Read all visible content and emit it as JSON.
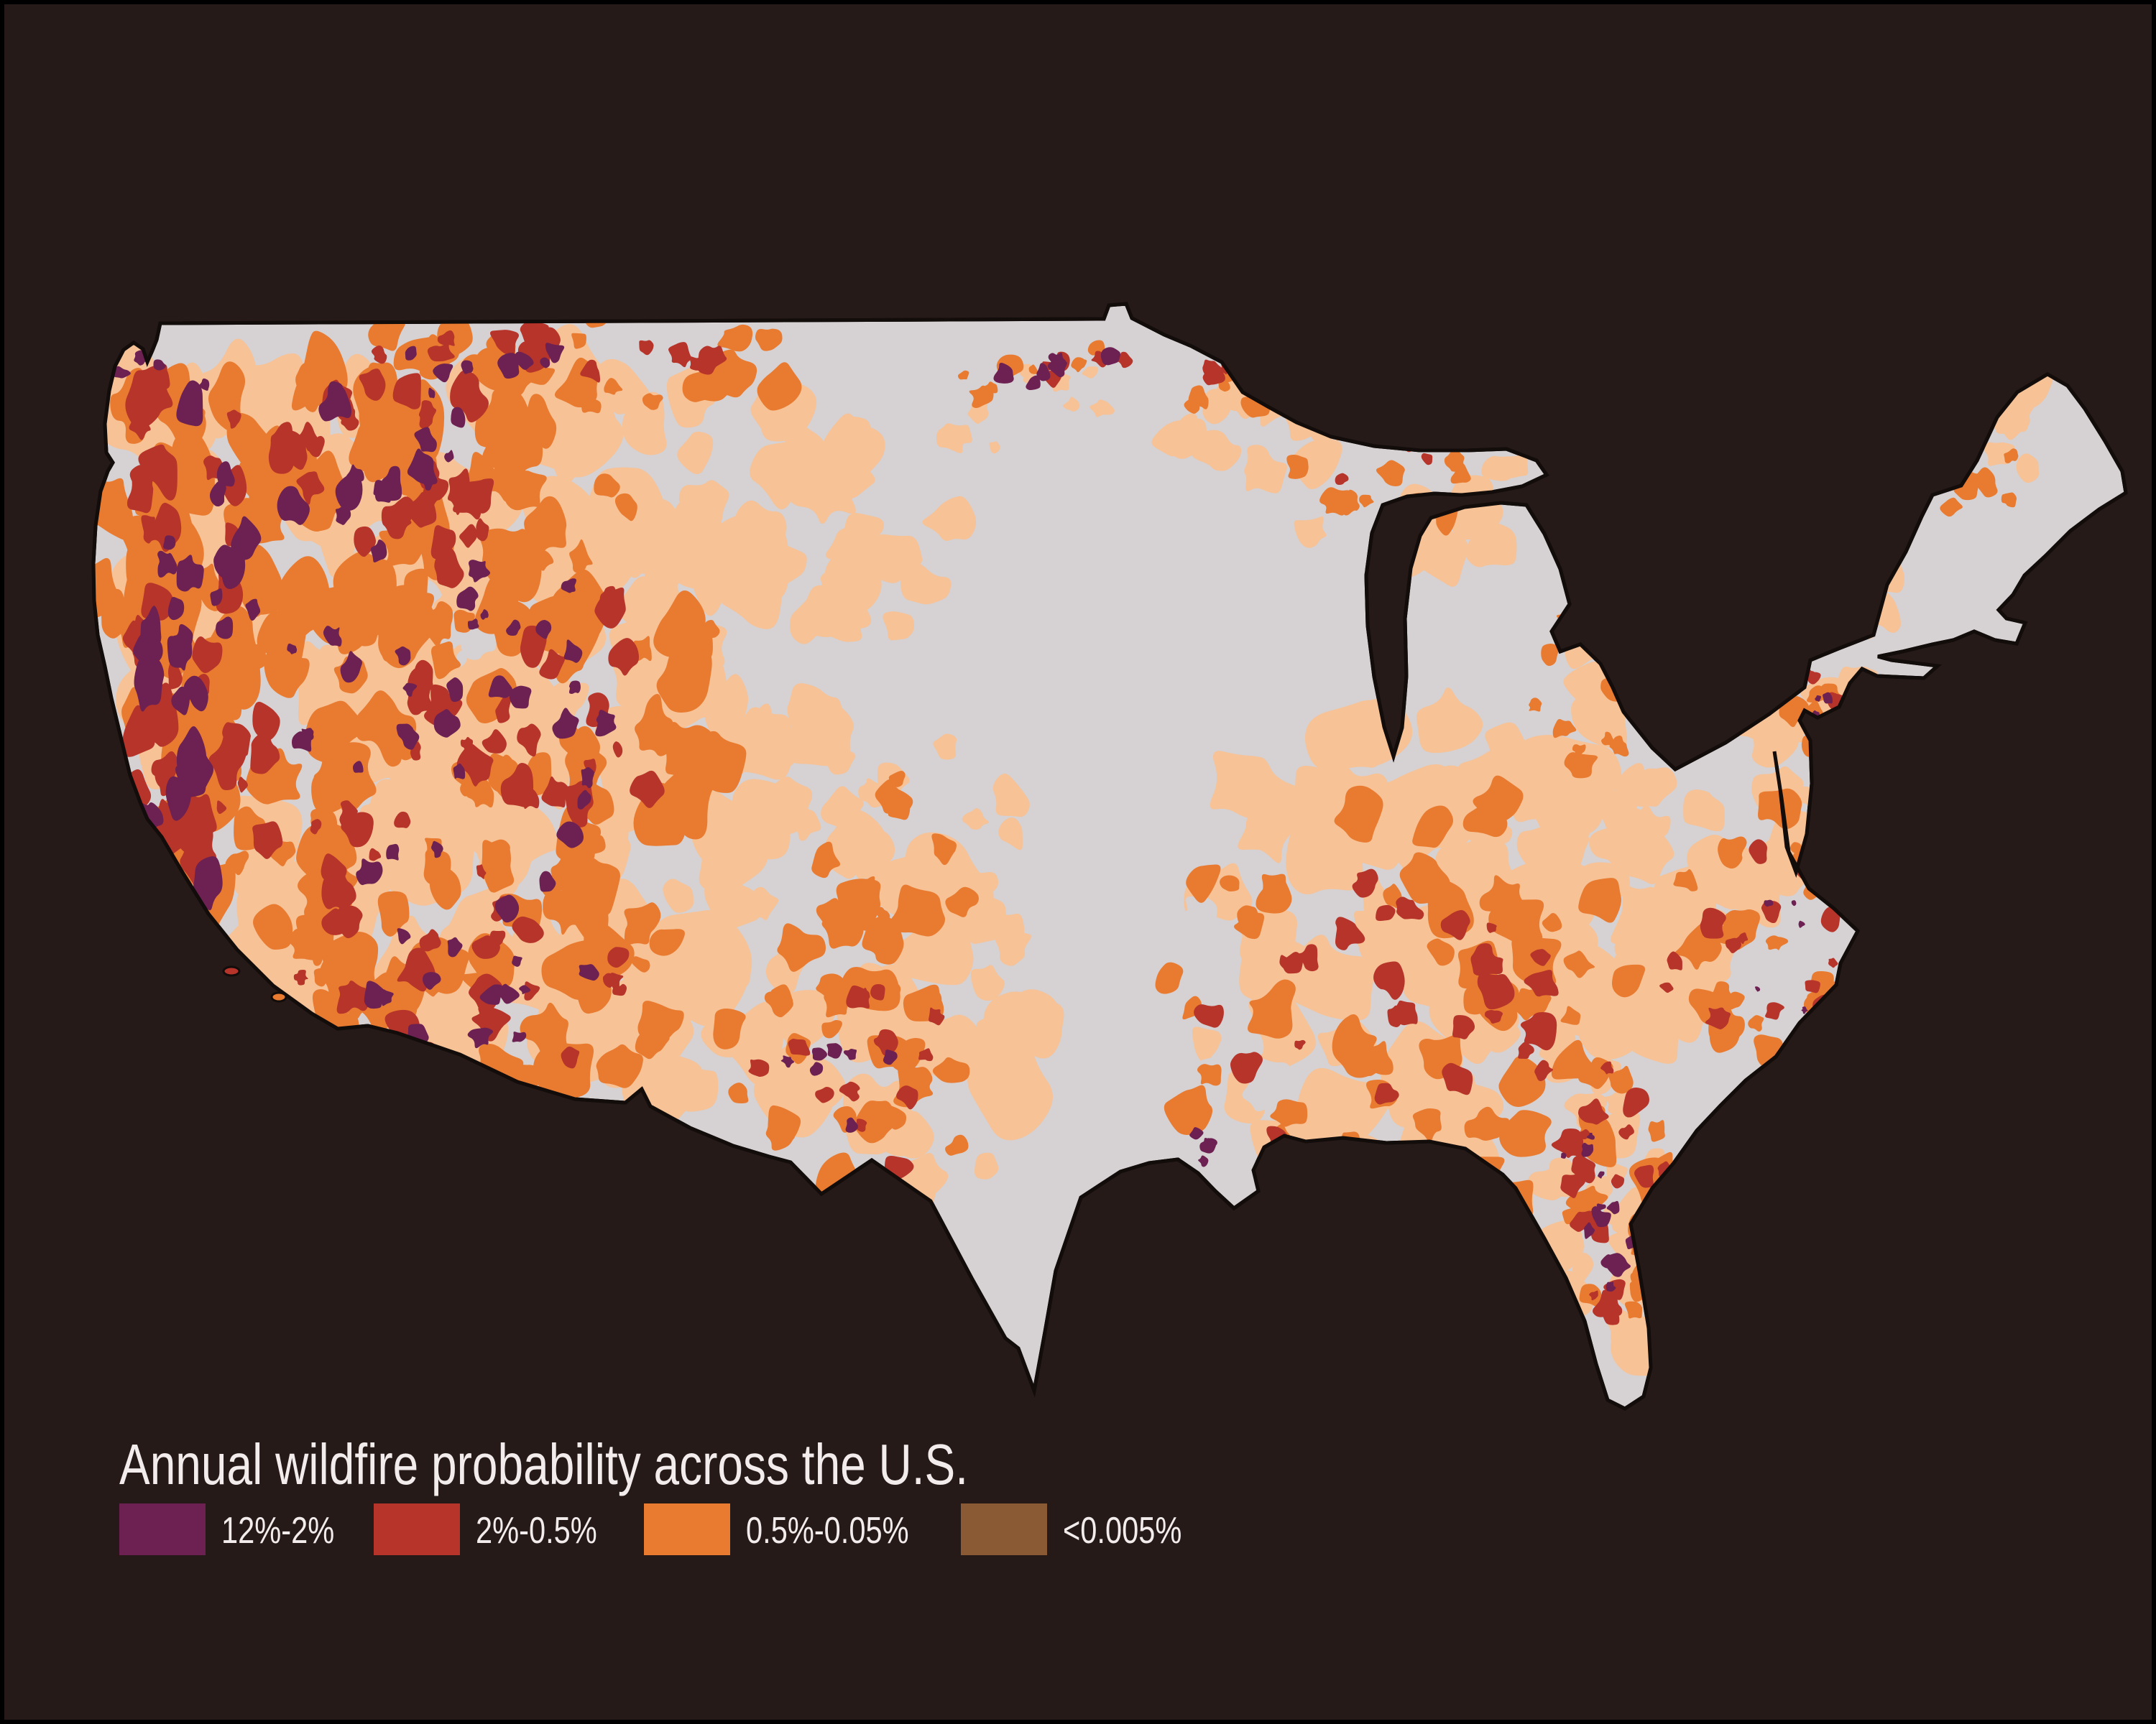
{
  "title": "Annual wildfire probability across the U.S.",
  "legend": {
    "items": [
      {
        "label": "12%-2%",
        "color": "#6c2152"
      },
      {
        "label": "2%-0.5%",
        "color": "#b7342a"
      },
      {
        "label": "0.5%-0.05%",
        "color": "#e97b31"
      },
      {
        "label": "<0.005%",
        "color": "#8a5a34"
      }
    ]
  },
  "map": {
    "region": "Contiguous United States",
    "palette": {
      "land_base": "#d6d1d2",
      "class_low": "#f6c296",
      "class_mid": "#e97b31",
      "class_high": "#b7342a",
      "class_extreme": "#6c2152",
      "water": "#261a18",
      "outline": "#120c0b"
    }
  },
  "page": {
    "background": "#261a18",
    "text_color": "#f2ecec",
    "frame_color": "#000000"
  }
}
